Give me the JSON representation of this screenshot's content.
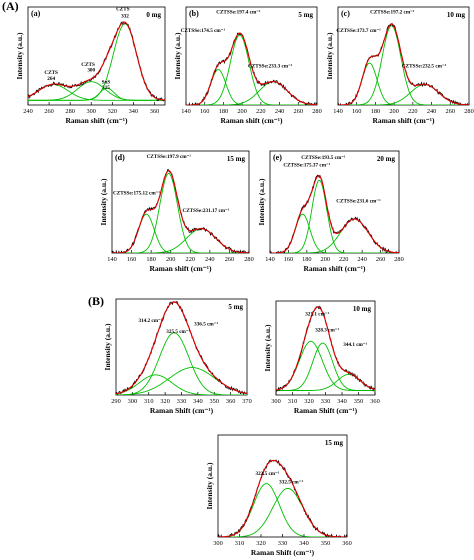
{
  "section_labels": {
    "a": "(A)",
    "b": "(B)"
  },
  "colors": {
    "fit": "#e00000",
    "data": "#000000",
    "component": "#00c000",
    "frame": "#000000"
  },
  "chart_data": [
    {
      "id": "A-a",
      "type": "line",
      "panel_label": "(a)",
      "sample": "0 mg",
      "xlabel": "Raman shift (cm⁻¹)",
      "ylabel": "Intensity (a.u.)",
      "xlim": [
        240,
        370
      ],
      "xticks": [
        240,
        260,
        280,
        300,
        320,
        340,
        360
      ],
      "ylim": [
        0,
        1.05
      ],
      "components": [
        {
          "center": 264,
          "height": 0.17,
          "width": 14
        },
        {
          "center": 300,
          "height": 0.2,
          "width": 13
        },
        {
          "center": 315,
          "height": 0.13,
          "width": 7
        },
        {
          "center": 332,
          "height": 0.82,
          "width": 11
        }
      ],
      "baseline": 0.05,
      "annotations": [
        {
          "text": "CZTS",
          "x": 262,
          "y": 0.33
        },
        {
          "text": "264",
          "x": 262,
          "y": 0.27
        },
        {
          "text": "CZTS",
          "x": 297,
          "y": 0.42
        },
        {
          "text": "300",
          "x": 300,
          "y": 0.36
        },
        {
          "text": "SnS",
          "x": 314,
          "y": 0.23
        },
        {
          "text": "315",
          "x": 314,
          "y": 0.17
        },
        {
          "text": "CZTS",
          "x": 330,
          "y": 1.01
        },
        {
          "text": "332",
          "x": 332,
          "y": 0.94
        }
      ]
    },
    {
      "id": "A-b",
      "type": "line",
      "panel_label": "(b)",
      "sample": "5 mg",
      "xlabel": "Raman shift (cm⁻¹)",
      "ylabel": "Intensity (a.u.)",
      "xlim": [
        140,
        280
      ],
      "xticks": [
        140,
        160,
        180,
        200,
        220,
        240,
        260,
        280
      ],
      "ylim": [
        0,
        1.05
      ],
      "components": [
        {
          "center": 174.5,
          "height": 0.38,
          "width": 8
        },
        {
          "center": 197.4,
          "height": 0.75,
          "width": 10
        },
        {
          "center": 233.3,
          "height": 0.25,
          "width": 15
        }
      ],
      "baseline": 0.0,
      "annotations": [
        {
          "text": "CZTSSe:197.4 cm⁻¹",
          "x": 196,
          "y": 0.98
        },
        {
          "text": "CZTSSe:174.5 cm⁻¹",
          "x": 158,
          "y": 0.78
        },
        {
          "text": "CZTSSe:233.3 cm⁻¹",
          "x": 230,
          "y": 0.4
        }
      ]
    },
    {
      "id": "A-c",
      "type": "line",
      "panel_label": "(c)",
      "sample": "10 mg",
      "xlabel": "Raman shift (cm⁻¹)",
      "ylabel": "Intensity (a.u.)",
      "xlim": [
        140,
        280
      ],
      "xticks": [
        140,
        160,
        180,
        200,
        220,
        240,
        260,
        280
      ],
      "ylim": [
        0,
        1.05
      ],
      "components": [
        {
          "center": 173.7,
          "height": 0.45,
          "width": 8
        },
        {
          "center": 197.2,
          "height": 0.85,
          "width": 10
        },
        {
          "center": 232.5,
          "height": 0.22,
          "width": 15
        }
      ],
      "baseline": 0.0,
      "annotations": [
        {
          "text": "CZTSSe:197.2 cm⁻¹",
          "x": 198,
          "y": 0.98
        },
        {
          "text": "CZTSSe:173.7 cm⁻¹",
          "x": 162,
          "y": 0.78
        },
        {
          "text": "CZTSSe:232.5 cm⁻¹",
          "x": 232,
          "y": 0.4
        }
      ]
    },
    {
      "id": "A-d",
      "type": "line",
      "panel_label": "(d)",
      "sample": "15 mg",
      "xlabel": "Raman shift (cm⁻¹)",
      "ylabel": "Intensity (a.u.)",
      "xlim": [
        140,
        280
      ],
      "xticks": [
        140,
        160,
        180,
        200,
        220,
        240,
        260,
        280
      ],
      "ylim": [
        0,
        1.05
      ],
      "components": [
        {
          "center": 175.12,
          "height": 0.4,
          "width": 8
        },
        {
          "center": 197.9,
          "height": 0.82,
          "width": 9
        },
        {
          "center": 231.17,
          "height": 0.25,
          "width": 15
        }
      ],
      "baseline": 0.0,
      "annotations": [
        {
          "text": "CZTSSe:197.9 cm⁻¹",
          "x": 198,
          "y": 0.98
        },
        {
          "text": "CZTSSe:175.12 cm⁻¹",
          "x": 165,
          "y": 0.6
        },
        {
          "text": "CZTSSe:231.17 cm⁻¹",
          "x": 236,
          "y": 0.42
        }
      ]
    },
    {
      "id": "A-e",
      "type": "line",
      "panel_label": "(e)",
      "sample": "20 mg",
      "xlabel": "Raman shift (cm⁻¹)",
      "ylabel": "Intensity (a.u.)",
      "xlim": [
        140,
        280
      ],
      "xticks": [
        140,
        160,
        180,
        200,
        220,
        240,
        260,
        280
      ],
      "ylim": [
        0,
        1.05
      ],
      "components": [
        {
          "center": 175.37,
          "height": 0.4,
          "width": 8
        },
        {
          "center": 193.5,
          "height": 0.75,
          "width": 8
        },
        {
          "center": 231.6,
          "height": 0.35,
          "width": 15
        }
      ],
      "baseline": 0.0,
      "annotations": [
        {
          "text": "CZTSSe:193.5 cm⁻¹",
          "x": 198,
          "y": 0.97
        },
        {
          "text": "CZTSSe:175.37 cm⁻¹",
          "x": 180,
          "y": 0.89
        },
        {
          "text": "CZTSSe:231.6 cm⁻¹",
          "x": 236,
          "y": 0.52
        }
      ]
    },
    {
      "id": "B-5",
      "type": "line",
      "panel_label": "",
      "sample": "5 mg",
      "xlabel": "Raman Shift (cm⁻¹)",
      "ylabel": "Intensity (a.u.)",
      "xlim": [
        290,
        370
      ],
      "xticks": [
        290,
        300,
        310,
        320,
        330,
        340,
        350,
        360,
        370
      ],
      "ylim": [
        0,
        1.05
      ],
      "components": [
        {
          "center": 314.2,
          "height": 0.22,
          "width": 10
        },
        {
          "center": 325.5,
          "height": 0.68,
          "width": 9
        },
        {
          "center": 336.5,
          "height": 0.3,
          "width": 14
        }
      ],
      "baseline": 0.0,
      "annotations": [
        {
          "text": "314.2 cm⁻¹",
          "x": 311,
          "y": 0.8
        },
        {
          "text": "325.5 cm⁻¹",
          "x": 328,
          "y": 0.68
        },
        {
          "text": "336.5 cm⁻¹",
          "x": 345,
          "y": 0.76
        }
      ]
    },
    {
      "id": "B-10",
      "type": "line",
      "panel_label": "",
      "sample": "10 mg",
      "xlabel": "Raman Shift (cm⁻¹)",
      "ylabel": "Intensity (a.u.)",
      "xlim": [
        300,
        360
      ],
      "xticks": [
        300,
        310,
        320,
        330,
        340,
        350,
        360
      ],
      "ylim": [
        0,
        1.05
      ],
      "components": [
        {
          "center": 321.1,
          "height": 0.55,
          "width": 7
        },
        {
          "center": 328.3,
          "height": 0.53,
          "width": 6
        },
        {
          "center": 344.1,
          "height": 0.18,
          "width": 7
        }
      ],
      "baseline": 0.05,
      "annotations": [
        {
          "text": "321.1 cm⁻¹",
          "x": 325,
          "y": 0.89
        },
        {
          "text": "328.3 cm⁻¹",
          "x": 331,
          "y": 0.71
        },
        {
          "text": "344.1 cm⁻¹",
          "x": 348,
          "y": 0.55
        }
      ]
    },
    {
      "id": "B-15",
      "type": "line",
      "panel_label": "",
      "sample": "15 mg",
      "xlabel": "Raman Shift (cm⁻¹)",
      "ylabel": "Intensity (a.u.)",
      "xlim": [
        300,
        360
      ],
      "xticks": [
        300,
        310,
        320,
        330,
        340,
        350,
        360
      ],
      "ylim": [
        0,
        1.05
      ],
      "components": [
        {
          "center": 322.5,
          "height": 0.55,
          "width": 6
        },
        {
          "center": 332.5,
          "height": 0.5,
          "width": 7
        }
      ],
      "baseline": 0.0,
      "annotations": [
        {
          "text": "322.5 cm⁻¹",
          "x": 323,
          "y": 0.64
        },
        {
          "text": "332.5 cm⁻¹",
          "x": 334,
          "y": 0.55
        }
      ]
    }
  ]
}
